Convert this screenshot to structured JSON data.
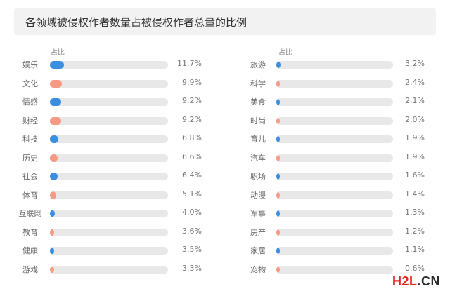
{
  "page_title": "各领域被侵权作者数量占被侵权作者总量的比例",
  "chart_data": {
    "type": "bar",
    "orientation": "horizontal",
    "title": "各领域被侵权作者数量占被侵权作者总量的比例",
    "value_header": "占比",
    "unit": "%",
    "xlim": [
      0,
      100
    ],
    "colors": {
      "blue": "#3a8fe0",
      "orange": "#f79a83",
      "track": "#e8e8e8"
    },
    "panels": [
      {
        "header": "占比",
        "items": [
          {
            "category": "娱乐",
            "value": 11.7,
            "label": "11.7%",
            "color": "blue"
          },
          {
            "category": "文化",
            "value": 9.9,
            "label": "9.9%",
            "color": "orange"
          },
          {
            "category": "情感",
            "value": 9.2,
            "label": "9.2%",
            "color": "blue"
          },
          {
            "category": "财经",
            "value": 9.2,
            "label": "9.2%",
            "color": "orange"
          },
          {
            "category": "科技",
            "value": 6.8,
            "label": "6.8%",
            "color": "blue"
          },
          {
            "category": "历史",
            "value": 6.6,
            "label": "6.6%",
            "color": "orange"
          },
          {
            "category": "社会",
            "value": 6.4,
            "label": "6.4%",
            "color": "blue"
          },
          {
            "category": "体育",
            "value": 5.1,
            "label": "5.1%",
            "color": "orange"
          },
          {
            "category": "互联网",
            "value": 4.0,
            "label": "4.0%",
            "color": "blue"
          },
          {
            "category": "教育",
            "value": 3.6,
            "label": "3.6%",
            "color": "orange"
          },
          {
            "category": "健康",
            "value": 3.5,
            "label": "3.5%",
            "color": "blue"
          },
          {
            "category": "游戏",
            "value": 3.3,
            "label": "3.3%",
            "color": "orange"
          }
        ]
      },
      {
        "header": "占比",
        "items": [
          {
            "category": "旅游",
            "value": 3.2,
            "label": "3.2%",
            "color": "blue"
          },
          {
            "category": "科学",
            "value": 2.4,
            "label": "2.4%",
            "color": "orange"
          },
          {
            "category": "美食",
            "value": 2.1,
            "label": "2.1%",
            "color": "blue"
          },
          {
            "category": "时尚",
            "value": 2.0,
            "label": "2.0%",
            "color": "orange"
          },
          {
            "category": "育儿",
            "value": 1.9,
            "label": "1.9%",
            "color": "blue"
          },
          {
            "category": "汽车",
            "value": 1.9,
            "label": "1.9%",
            "color": "orange"
          },
          {
            "category": "职场",
            "value": 1.6,
            "label": "1.6%",
            "color": "blue"
          },
          {
            "category": "动漫",
            "value": 1.4,
            "label": "1.4%",
            "color": "orange"
          },
          {
            "category": "军事",
            "value": 1.3,
            "label": "1.3%",
            "color": "blue"
          },
          {
            "category": "房产",
            "value": 1.2,
            "label": "1.2%",
            "color": "orange"
          },
          {
            "category": "家居",
            "value": 1.1,
            "label": "1.1%",
            "color": "blue"
          },
          {
            "category": "宠物",
            "value": 0.6,
            "label": "0.6%",
            "color": "orange"
          }
        ]
      }
    ]
  },
  "watermark": {
    "part1": "H2L",
    "part2": ".CN"
  }
}
